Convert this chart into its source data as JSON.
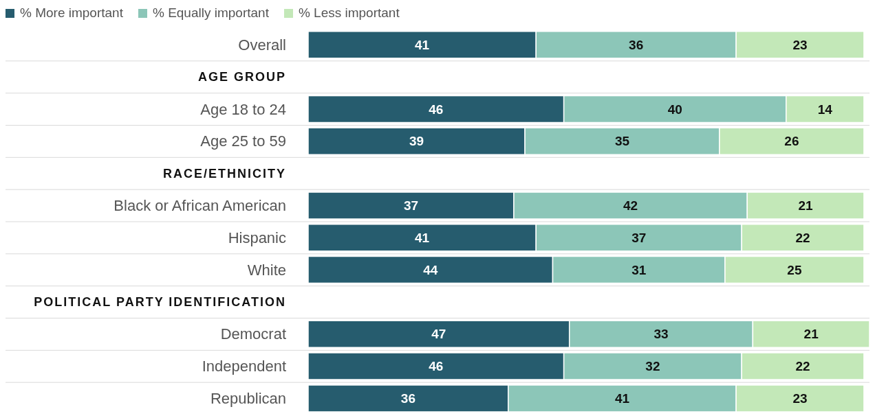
{
  "chart_data": {
    "type": "bar",
    "orientation": "horizontal",
    "stacked": true,
    "data_labels": true,
    "legend": "top left",
    "grid": "y",
    "xlim": [
      0,
      101
    ],
    "tick_labels": "y",
    "categories": [
      "Overall",
      "AGE GROUP",
      "Age 18 to 24",
      "Age 25 to 59",
      "RACE/ETHNICITY",
      "Black or African American",
      "Hispanic",
      "White",
      "POLITICAL PARTY IDENTIFICATION",
      "Democrat",
      "Independent",
      "Republican"
    ],
    "series": [
      {
        "name": "% More important",
        "color": "#265c6e",
        "values": [
          41,
          null,
          46,
          39,
          null,
          37,
          41,
          44,
          null,
          47,
          46,
          36
        ]
      },
      {
        "name": "% Equally important",
        "color": "#8cc6b8",
        "values": [
          36,
          null,
          40,
          35,
          null,
          42,
          37,
          31,
          null,
          33,
          32,
          41
        ]
      },
      {
        "name": "% Less important",
        "color": "#c3e8b8",
        "values": [
          23,
          null,
          14,
          26,
          null,
          21,
          22,
          25,
          null,
          21,
          22,
          23
        ]
      }
    ]
  }
}
